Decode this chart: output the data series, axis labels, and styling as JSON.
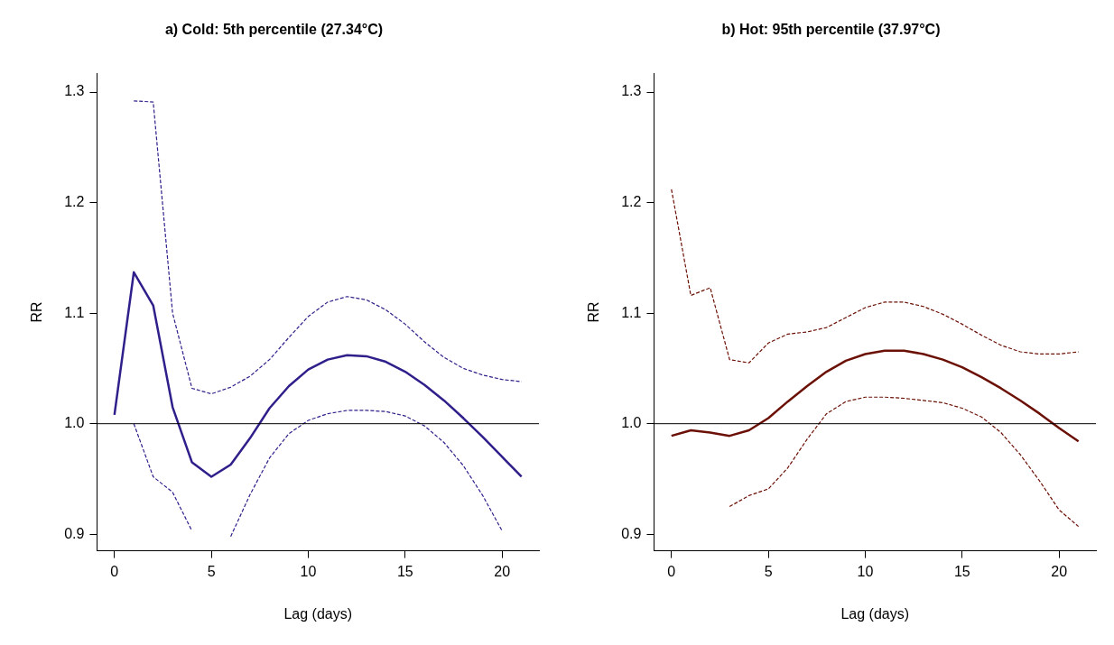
{
  "chart_data": [
    {
      "type": "line",
      "title": "a) Cold: 5th percentile (27.34°C)",
      "xlabel": "Lag (days)",
      "ylabel": "RR",
      "x": [
        0,
        1,
        2,
        3,
        4,
        5,
        6,
        7,
        8,
        9,
        10,
        11,
        12,
        13,
        14,
        15,
        16,
        17,
        18,
        19,
        20,
        21
      ],
      "series": [
        {
          "color": "#2e1f8a",
          "line_style": "solid",
          "values": [
            1.008,
            1.137,
            1.107,
            1.015,
            0.965,
            0.952,
            0.963,
            0.987,
            1.014,
            1.034,
            1.049,
            1.058,
            1.062,
            1.061,
            1.056,
            1.047,
            1.035,
            1.021,
            1.005,
            0.988,
            0.97,
            0.952
          ]
        },
        {
          "color": "#2e1f8a",
          "line_style": "dashed",
          "values": [
            null,
            1.292,
            1.291,
            1.1,
            1.032,
            1.027,
            1.033,
            1.043,
            1.058,
            1.078,
            1.097,
            1.11,
            1.115,
            1.112,
            1.103,
            1.09,
            1.074,
            1.06,
            1.05,
            1.044,
            1.04,
            1.038
          ]
        },
        {
          "color": "#2e1f8a",
          "line_style": "dashed",
          "values": [
            null,
            1.0,
            0.952,
            0.938,
            0.903,
            null,
            0.898,
            0.936,
            0.969,
            0.991,
            1.003,
            1.009,
            1.012,
            1.012,
            1.011,
            1.007,
            0.998,
            0.983,
            0.962,
            0.935,
            0.903,
            null
          ]
        }
      ],
      "xlim": [
        -0.9,
        21.9
      ],
      "ylim": [
        0.885,
        1.317
      ],
      "xticks": [
        0,
        5,
        10,
        15,
        20
      ],
      "yticks": [
        0.9,
        1.1,
        1.2,
        1.3,
        {
          "value": 1,
          "label": "1.0"
        }
      ],
      "ref_lines": [
        {
          "axis": "y",
          "value": 1,
          "color": "#000000"
        }
      ],
      "grid": false,
      "legend": false,
      "marker": "none"
    },
    {
      "type": "line",
      "title": "b) Hot: 95th percentile (37.97°C)",
      "xlabel": "Lag (days)",
      "ylabel": "RR",
      "x": [
        0,
        1,
        2,
        3,
        4,
        5,
        6,
        7,
        8,
        9,
        10,
        11,
        12,
        13,
        14,
        15,
        16,
        17,
        18,
        19,
        20,
        21
      ],
      "series": [
        {
          "color": "#6b1005",
          "line_style": "solid",
          "values": [
            0.989,
            0.994,
            0.992,
            0.989,
            0.994,
            1.005,
            1.02,
            1.034,
            1.047,
            1.057,
            1.063,
            1.066,
            1.066,
            1.063,
            1.058,
            1.051,
            1.042,
            1.032,
            1.021,
            1.009,
            0.996,
            0.984
          ]
        },
        {
          "color": "#6b1005",
          "line_style": "dashed",
          "values": [
            1.212,
            1.116,
            1.123,
            1.058,
            1.055,
            1.073,
            1.081,
            1.083,
            1.087,
            1.096,
            1.105,
            1.11,
            1.11,
            1.106,
            1.099,
            1.09,
            1.08,
            1.071,
            1.065,
            1.063,
            1.063,
            1.065
          ]
        },
        {
          "color": "#6b1005",
          "line_style": "dashed",
          "values": [
            null,
            null,
            null,
            0.925,
            0.935,
            0.941,
            0.96,
            0.986,
            1.009,
            1.02,
            1.024,
            1.024,
            1.023,
            1.021,
            1.019,
            1.014,
            1.006,
            0.992,
            0.972,
            0.948,
            0.922,
            0.907
          ]
        }
      ],
      "xlim": [
        -0.9,
        21.9
      ],
      "ylim": [
        0.885,
        1.317
      ],
      "xticks": [
        0,
        5,
        10,
        15,
        20
      ],
      "yticks": [
        0.9,
        1.1,
        1.2,
        1.3,
        {
          "value": 1,
          "label": "1.0"
        }
      ],
      "ref_lines": [
        {
          "axis": "y",
          "value": 1,
          "color": "#000000"
        }
      ],
      "grid": false,
      "legend": false,
      "marker": "none"
    }
  ]
}
